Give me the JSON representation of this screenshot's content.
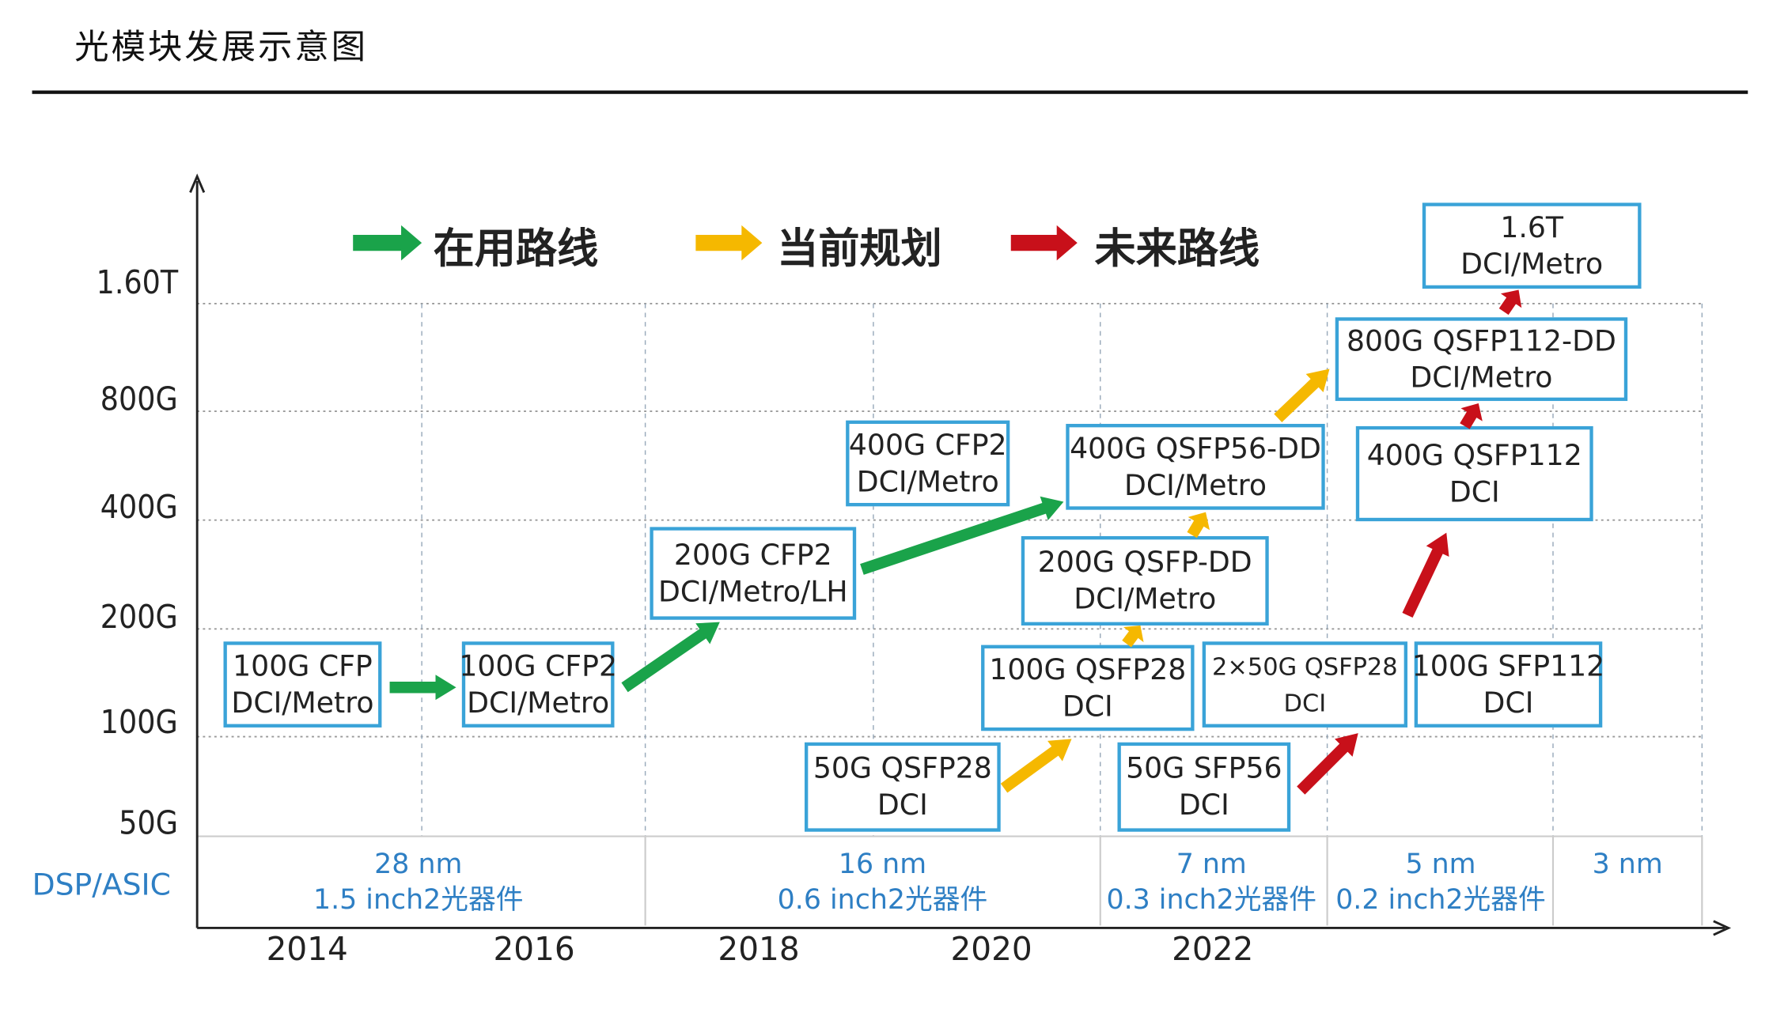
{
  "title": "光模块发展示意图",
  "legend": [
    {
      "label": "在用路线",
      "color": "#1aa34a"
    },
    {
      "label": "当前规划",
      "color": "#f5b800"
    },
    {
      "label": "未来路线",
      "color": "#c8101a"
    }
  ],
  "y_ticks": [
    "1.60T",
    "800G",
    "400G",
    "200G",
    "100G",
    "50G"
  ],
  "x_ticks": [
    "2014",
    "2016",
    "2018",
    "2020",
    "2022"
  ],
  "row_label": "DSP/ASIC",
  "process_nodes": [
    {
      "node": "28 nm",
      "size": "1.5 inch2光器件"
    },
    {
      "node": "16 nm",
      "size": "0.6 inch2光器件"
    },
    {
      "node": "7 nm",
      "size": "0.3 inch2光器件"
    },
    {
      "node": "5 nm",
      "size": "0.2 inch2光器件"
    },
    {
      "node": "3 nm",
      "size": ""
    }
  ],
  "modules": [
    {
      "line1": "100G CFP",
      "line2": "DCI/Metro"
    },
    {
      "line1": "100G CFP2",
      "line2": "DCI/Metro"
    },
    {
      "line1": "200G CFP2",
      "line2": "DCI/Metro/LH"
    },
    {
      "line1": "400G CFP2",
      "line2": "DCI/Metro"
    },
    {
      "line1": "400G QSFP56-DD",
      "line2": "DCI/Metro"
    },
    {
      "line1": "200G QSFP-DD",
      "line2": "DCI/Metro"
    },
    {
      "line1": "100G QSFP28",
      "line2": "DCI"
    },
    {
      "line1": "2×50G QSFP28",
      "line2": "DCI"
    },
    {
      "line1": "100G SFP112",
      "line2": "DCI"
    },
    {
      "line1": "50G QSFP28",
      "line2": "DCI"
    },
    {
      "line1": "50G SFP56",
      "line2": "DCI"
    },
    {
      "line1": "400G QSFP112",
      "line2": "DCI"
    },
    {
      "line1": "800G QSFP112-DD",
      "line2": "DCI/Metro"
    },
    {
      "line1": "1.6T",
      "line2": "DCI/Metro"
    }
  ],
  "colors": {
    "box_border": "#3aa3d8",
    "node_text": "#2e7fc4"
  }
}
